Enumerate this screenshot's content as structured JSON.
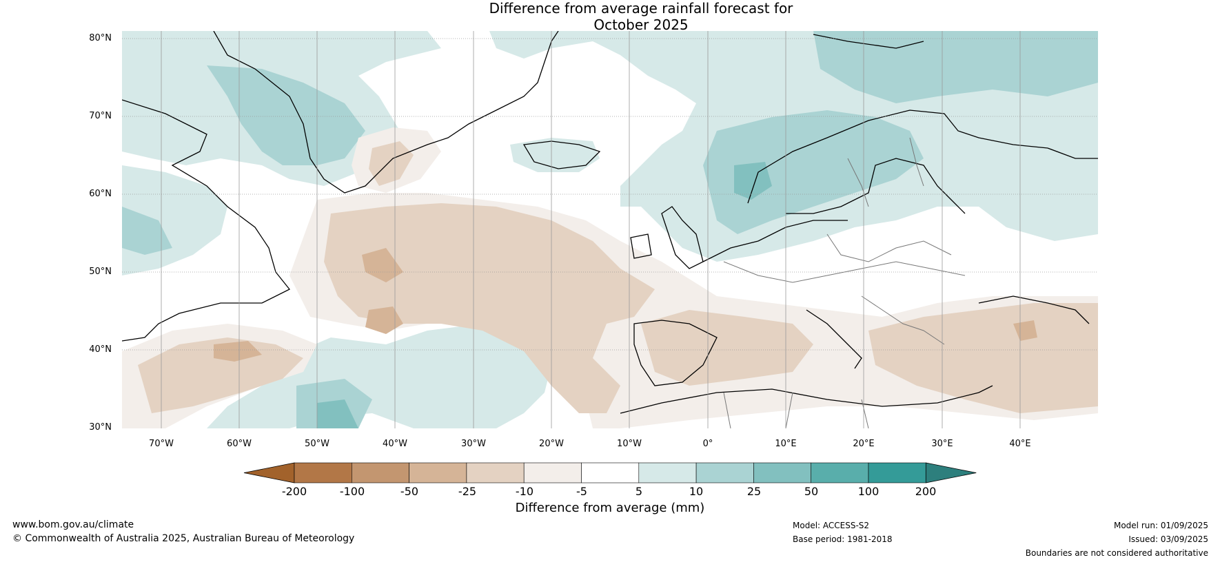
{
  "title": {
    "line1": "Difference from average rainfall forecast for",
    "line2": "October 2025"
  },
  "lat_labels": [
    "80°N",
    "70°N",
    "60°N",
    "50°N",
    "40°N",
    "30°N"
  ],
  "lon_labels": [
    "70°W",
    "60°W",
    "50°W",
    "40°W",
    "30°W",
    "20°W",
    "10°W",
    "0°",
    "10°E",
    "20°E",
    "30°E",
    "40°E"
  ],
  "colorbar": {
    "ticks": [
      "-200",
      "-100",
      "-50",
      "-25",
      "-10",
      "-5",
      "5",
      "10",
      "25",
      "50",
      "100",
      "200"
    ],
    "colors": [
      "#a2622b",
      "#b27747",
      "#c39670",
      "#d5b497",
      "#e4d2c2",
      "#f3eeea",
      "#ffffff",
      "#d6e9e8",
      "#aad3d3",
      "#82c0bf",
      "#59aeab",
      "#349b98",
      "#2d7f7d"
    ],
    "label": "Difference from average (mm)"
  },
  "footer": {
    "url": "www.bom.gov.au/climate",
    "copyright": "© Commonwealth of Australia 2025, Australian Bureau of Meteorology",
    "model": "Model: ACCESS-S2",
    "base_period": "Base period: 1981-2018",
    "model_run": "Model run: 01/09/2025",
    "issued": "Issued: 03/09/2025",
    "disclaimer": "Boundaries are not considered authoritative"
  }
}
